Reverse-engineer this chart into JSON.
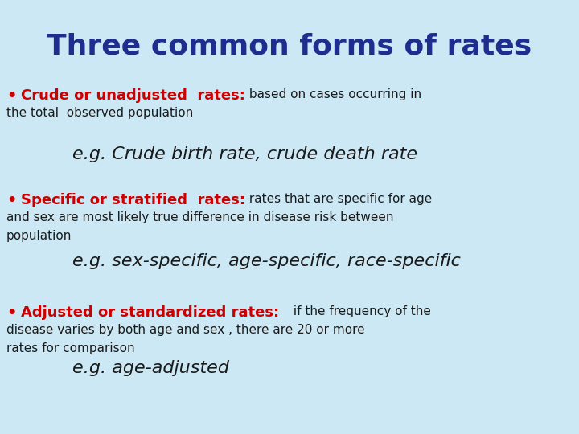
{
  "background_color": "#cce8f4",
  "title": "Three common forms of rates",
  "title_color": "#1f2e8e",
  "title_fontsize": 26,
  "red_color": "#cc0000",
  "black_color": "#1a1a1a",
  "fig_width": 7.2,
  "fig_height": 5.4,
  "dpi": 100,
  "sections": [
    {
      "bullet_red": "Crude or unadjusted  rates:",
      "first_black": " based on cases occurring in",
      "second_line": "the total  observed population",
      "third_line": "",
      "example": "e.g. Crude birth rate, crude death rate",
      "red_size": 13,
      "black_size": 11,
      "example_size": 16
    },
    {
      "bullet_red": "Specific or stratified  rates:",
      "first_black": " rates that are specific for age",
      "second_line": "and sex are most likely true difference in disease risk between",
      "third_line": "population",
      "example": "e.g. sex-specific, age-specific, race-specific",
      "red_size": 13,
      "black_size": 11,
      "example_size": 16
    },
    {
      "bullet_red": "Adjusted or standardized rates:  ",
      "first_black": " if the frequency of the",
      "second_line": "disease varies by both age and sex , there are 20 or more",
      "third_line": "rates for comparison",
      "example": "e.g. age-adjusted",
      "red_size": 13,
      "black_size": 11,
      "example_size": 16
    }
  ]
}
